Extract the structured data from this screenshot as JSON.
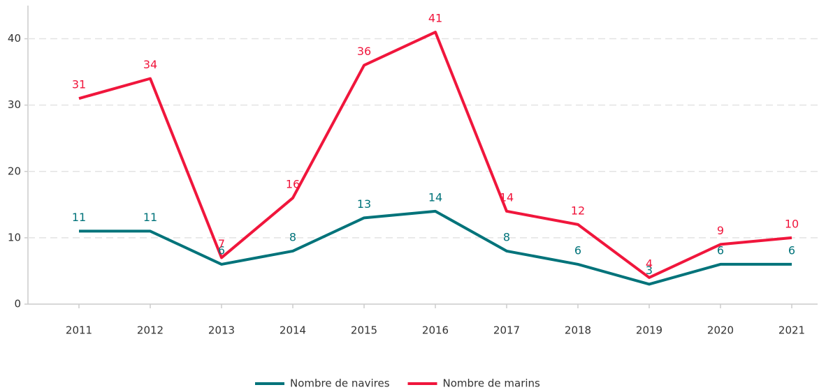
{
  "chart_data": {
    "type": "line",
    "categories": [
      "2011",
      "2012",
      "2013",
      "2014",
      "2015",
      "2016",
      "2017",
      "2018",
      "2019",
      "2020",
      "2021"
    ],
    "series": [
      {
        "name": "Nombre de navires",
        "color": "#00737a",
        "values": [
          11,
          11,
          6,
          8,
          13,
          14,
          8,
          6,
          3,
          6,
          6
        ]
      },
      {
        "name": "Nombre de marins",
        "color": "#f0163c",
        "values": [
          31,
          34,
          7,
          16,
          36,
          41,
          14,
          12,
          4,
          9,
          10
        ]
      }
    ],
    "ylim": [
      0,
      45
    ],
    "yticks": [
      0,
      10,
      20,
      30,
      40
    ],
    "grid": true,
    "legend": "bottom"
  }
}
